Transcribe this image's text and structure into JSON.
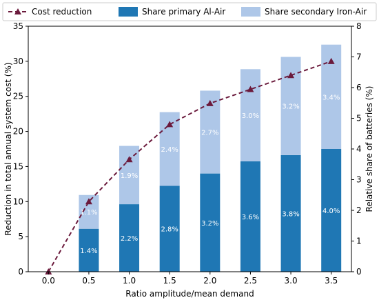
{
  "chart_data": {
    "type": "bar",
    "title": "",
    "xlabel": "Ratio amplitude/mean demand",
    "ylabel_left": "Reduction in total annual system cost (%)",
    "ylabel_right": "Relative share of batteries (%)",
    "x_categories": [
      "0.0",
      "0.5",
      "1.0",
      "1.5",
      "2.0",
      "2.5",
      "3.0",
      "3.5"
    ],
    "ylim_left": [
      0,
      35
    ],
    "ylim_right": [
      0,
      8
    ],
    "yticks_left": [
      0,
      5,
      10,
      15,
      20,
      25,
      30,
      35
    ],
    "yticks_right": [
      0,
      1,
      2,
      3,
      4,
      5,
      6,
      7,
      8
    ],
    "legend_position": "top",
    "grid": false,
    "series": [
      {
        "name": "Cost reduction",
        "kind": "line",
        "axis": "left",
        "color": "#6b1a3c",
        "values": [
          0.0,
          10.0,
          16.0,
          21.0,
          24.0,
          26.0,
          28.0,
          30.0
        ]
      },
      {
        "name": "Share primary Al-Air",
        "kind": "bar",
        "axis": "right",
        "color": "#1f77b4",
        "values": [
          null,
          1.4,
          2.2,
          2.8,
          3.2,
          3.6,
          3.8,
          4.0
        ],
        "labels": [
          "",
          "1.4%",
          "2.2%",
          "2.8%",
          "3.2%",
          "3.6%",
          "3.8%",
          "4.0%"
        ]
      },
      {
        "name": "Share secondary Iron-Air",
        "kind": "bar",
        "axis": "right",
        "color": "#aec7e8",
        "values": [
          null,
          1.1,
          1.9,
          2.4,
          2.7,
          3.0,
          3.2,
          3.4
        ],
        "labels": [
          "",
          "1.1%",
          "1.9%",
          "2.4%",
          "2.7%",
          "3.0%",
          "3.2%",
          "3.4%"
        ]
      }
    ]
  }
}
